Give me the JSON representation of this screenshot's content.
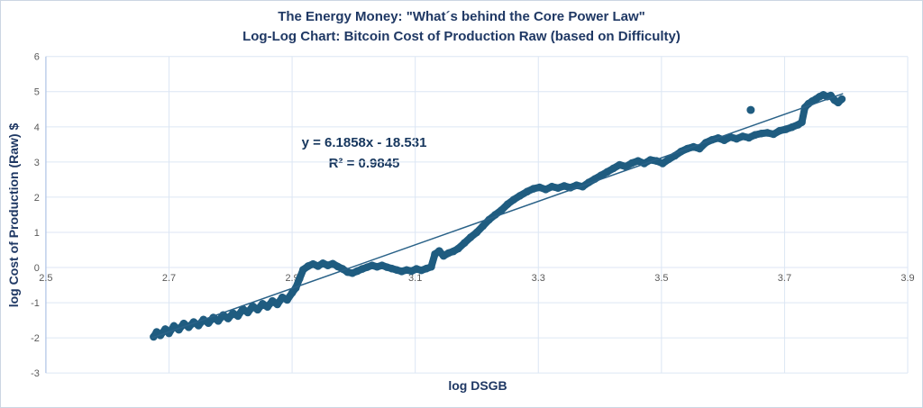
{
  "colors": {
    "series": "#1f5c80",
    "trendline": "#2a6288",
    "grid": "#dce6f4",
    "axis": "#b4c7e7",
    "title_text": "#1f3864",
    "tick_text": "#595959",
    "background": "#ffffff",
    "frame_border": "#ccd6e3"
  },
  "chart_data": {
    "type": "scatter",
    "title": "The Energy Money: \"What´s behind the Core Power Law\"",
    "subtitle": "Log-Log Chart: Bitcoin Cost of Production Raw (based on Difficulty)",
    "xlabel": "log DSGB",
    "ylabel": "log Cost of Production (Raw) $",
    "xlim": [
      2.5,
      3.9
    ],
    "ylim": [
      -3,
      6
    ],
    "x_ticks": [
      2.5,
      2.7,
      2.9,
      3.1,
      3.3,
      3.5,
      3.7,
      3.9
    ],
    "y_ticks": [
      6,
      5,
      4,
      3,
      2,
      1,
      0,
      -1,
      -2,
      -3
    ],
    "grid": true,
    "legend": false,
    "trendline": {
      "slope": 6.1858,
      "intercept": -18.531,
      "x_range": [
        2.672,
        3.795
      ],
      "equation_label": "y = 6.1858x - 18.531",
      "r2_label": "R² = 0.9845",
      "r2": 0.9845
    },
    "outliers": [
      [
        3.645,
        4.48
      ]
    ],
    "series": [
      {
        "name": "Bitcoin Cost of Production Raw (based on Difficulty)",
        "points": [
          [
            2.675,
            -1.97
          ],
          [
            2.68,
            -1.83
          ],
          [
            2.686,
            -1.93
          ],
          [
            2.694,
            -1.75
          ],
          [
            2.7,
            -1.87
          ],
          [
            2.708,
            -1.66
          ],
          [
            2.716,
            -1.77
          ],
          [
            2.724,
            -1.59
          ],
          [
            2.732,
            -1.7
          ],
          [
            2.74,
            -1.55
          ],
          [
            2.748,
            -1.65
          ],
          [
            2.756,
            -1.48
          ],
          [
            2.764,
            -1.58
          ],
          [
            2.772,
            -1.42
          ],
          [
            2.78,
            -1.52
          ],
          [
            2.788,
            -1.35
          ],
          [
            2.796,
            -1.45
          ],
          [
            2.804,
            -1.3
          ],
          [
            2.812,
            -1.38
          ],
          [
            2.82,
            -1.18
          ],
          [
            2.828,
            -1.28
          ],
          [
            2.836,
            -1.1
          ],
          [
            2.844,
            -1.2
          ],
          [
            2.852,
            -1.03
          ],
          [
            2.86,
            -1.12
          ],
          [
            2.868,
            -0.95
          ],
          [
            2.876,
            -1.05
          ],
          [
            2.884,
            -0.85
          ],
          [
            2.892,
            -0.92
          ],
          [
            2.9,
            -0.72
          ],
          [
            2.906,
            -0.58
          ],
          [
            2.912,
            -0.32
          ],
          [
            2.918,
            -0.06
          ],
          [
            2.926,
            0.04
          ],
          [
            2.934,
            0.1
          ],
          [
            2.942,
            0.04
          ],
          [
            2.95,
            0.12
          ],
          [
            2.958,
            0.06
          ],
          [
            2.966,
            0.11
          ],
          [
            2.974,
            0.03
          ],
          [
            2.982,
            -0.04
          ],
          [
            2.99,
            -0.13
          ],
          [
            2.998,
            -0.16
          ],
          [
            3.006,
            -0.1
          ],
          [
            3.014,
            -0.04
          ],
          [
            3.022,
            0.01
          ],
          [
            3.03,
            0.06
          ],
          [
            3.038,
            0.02
          ],
          [
            3.046,
            0.06
          ],
          [
            3.054,
            0.01
          ],
          [
            3.062,
            -0.03
          ],
          [
            3.07,
            -0.07
          ],
          [
            3.078,
            -0.11
          ],
          [
            3.086,
            -0.07
          ],
          [
            3.094,
            -0.1
          ],
          [
            3.102,
            -0.04
          ],
          [
            3.11,
            -0.08
          ],
          [
            3.118,
            -0.03
          ],
          [
            3.126,
            0.02
          ],
          [
            3.132,
            0.38
          ],
          [
            3.139,
            0.47
          ],
          [
            3.146,
            0.33
          ],
          [
            3.154,
            0.41
          ],
          [
            3.162,
            0.46
          ],
          [
            3.17,
            0.54
          ],
          [
            3.18,
            0.7
          ],
          [
            3.19,
            0.86
          ],
          [
            3.2,
            1.0
          ],
          [
            3.21,
            1.18
          ],
          [
            3.22,
            1.36
          ],
          [
            3.23,
            1.5
          ],
          [
            3.24,
            1.63
          ],
          [
            3.25,
            1.8
          ],
          [
            3.26,
            1.93
          ],
          [
            3.27,
            2.04
          ],
          [
            3.282,
            2.16
          ],
          [
            3.292,
            2.24
          ],
          [
            3.302,
            2.28
          ],
          [
            3.312,
            2.22
          ],
          [
            3.322,
            2.3
          ],
          [
            3.332,
            2.26
          ],
          [
            3.342,
            2.32
          ],
          [
            3.352,
            2.27
          ],
          [
            3.362,
            2.34
          ],
          [
            3.372,
            2.3
          ],
          [
            3.382,
            2.42
          ],
          [
            3.392,
            2.52
          ],
          [
            3.402,
            2.62
          ],
          [
            3.412,
            2.72
          ],
          [
            3.422,
            2.82
          ],
          [
            3.432,
            2.92
          ],
          [
            3.442,
            2.87
          ],
          [
            3.452,
            2.97
          ],
          [
            3.462,
            3.03
          ],
          [
            3.472,
            2.96
          ],
          [
            3.482,
            3.06
          ],
          [
            3.492,
            3.03
          ],
          [
            3.502,
            2.96
          ],
          [
            3.512,
            3.08
          ],
          [
            3.522,
            3.18
          ],
          [
            3.532,
            3.3
          ],
          [
            3.542,
            3.38
          ],
          [
            3.552,
            3.43
          ],
          [
            3.562,
            3.38
          ],
          [
            3.572,
            3.55
          ],
          [
            3.582,
            3.63
          ],
          [
            3.592,
            3.68
          ],
          [
            3.602,
            3.62
          ],
          [
            3.612,
            3.71
          ],
          [
            3.622,
            3.66
          ],
          [
            3.632,
            3.73
          ],
          [
            3.642,
            3.69
          ],
          [
            3.652,
            3.77
          ],
          [
            3.662,
            3.81
          ],
          [
            3.672,
            3.83
          ],
          [
            3.682,
            3.79
          ],
          [
            3.692,
            3.89
          ],
          [
            3.702,
            3.93
          ],
          [
            3.712,
            3.99
          ],
          [
            3.722,
            4.06
          ],
          [
            3.728,
            4.13
          ],
          [
            3.733,
            4.55
          ],
          [
            3.739,
            4.66
          ],
          [
            3.745,
            4.73
          ],
          [
            3.751,
            4.79
          ],
          [
            3.757,
            4.86
          ],
          [
            3.763,
            4.91
          ],
          [
            3.769,
            4.86
          ],
          [
            3.775,
            4.89
          ],
          [
            3.781,
            4.76
          ],
          [
            3.787,
            4.69
          ],
          [
            3.793,
            4.79
          ]
        ]
      }
    ]
  }
}
